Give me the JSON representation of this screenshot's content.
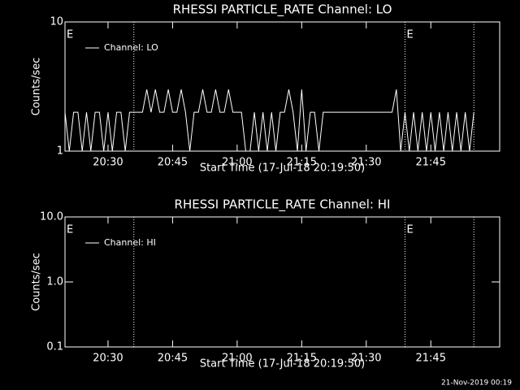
{
  "chart_data": [
    {
      "type": "line",
      "title": "RHESSI PARTICLE_RATE Channel: LO",
      "x_label": "Start Time (17-Jul-18 20:19:50)",
      "y_label": "Counts/sec",
      "log_y": true,
      "ylim": [
        1,
        10
      ],
      "yticks": [
        1,
        10
      ],
      "xlim": [
        "20:20",
        "22:01"
      ],
      "xticks": [
        "20:30",
        "20:45",
        "21:00",
        "21:15",
        "21:30",
        "21:45"
      ],
      "vlines": [
        "20:36",
        "21:39",
        "21:55"
      ],
      "annotations": [
        {
          "x": "20:20",
          "label": "E"
        },
        {
          "x": "21:39",
          "label": "E"
        }
      ],
      "legend": "upper left",
      "x": [
        "20:20",
        "20:21",
        "20:22",
        "20:23",
        "20:24",
        "20:25",
        "20:26",
        "20:27",
        "20:28",
        "20:29",
        "20:30",
        "20:31",
        "20:32",
        "20:33",
        "20:34",
        "20:35",
        "20:36",
        "20:37",
        "20:38",
        "20:39",
        "20:40",
        "20:41",
        "20:42",
        "20:43",
        "20:44",
        "20:45",
        "20:46",
        "20:47",
        "20:48",
        "20:49",
        "20:50",
        "20:51",
        "20:52",
        "20:53",
        "20:54",
        "20:55",
        "20:56",
        "20:57",
        "20:58",
        "20:59",
        "21:00",
        "21:01",
        "21:02",
        "21:03",
        "21:04",
        "21:05",
        "21:06",
        "21:07",
        "21:08",
        "21:09",
        "21:10",
        "21:11",
        "21:12",
        "21:13",
        "21:14",
        "21:15",
        "21:16",
        "21:17",
        "21:18",
        "21:19",
        "21:20",
        "21:21",
        "21:22",
        "21:23",
        "21:24",
        "21:25",
        "21:26",
        "21:27",
        "21:28",
        "21:29",
        "21:30",
        "21:31",
        "21:32",
        "21:33",
        "21:34",
        "21:35",
        "21:36",
        "21:37",
        "21:38",
        "21:39",
        "21:40",
        "21:41",
        "21:42",
        "21:43",
        "21:44",
        "21:45",
        "21:46",
        "21:47",
        "21:48",
        "21:49",
        "21:50",
        "21:51",
        "21:52",
        "21:53",
        "21:54",
        "21:55"
      ],
      "series": [
        {
          "name": "Channel: LO",
          "color": "#ffffff",
          "values": [
            2,
            1,
            2,
            2,
            1,
            2,
            1,
            2,
            2,
            1,
            2,
            1,
            2,
            2,
            1,
            2,
            2,
            2,
            2,
            3,
            2,
            3,
            2,
            2,
            3,
            2,
            2,
            3,
            2,
            1,
            2,
            2,
            3,
            2,
            2,
            3,
            2,
            2,
            3,
            2,
            2,
            2,
            1,
            1,
            2,
            1,
            2,
            1,
            2,
            1,
            2,
            2,
            3,
            2,
            1,
            3,
            1,
            2,
            2,
            1,
            2,
            2,
            2,
            2,
            2,
            2,
            2,
            2,
            2,
            2,
            2,
            2,
            2,
            2,
            2,
            2,
            2,
            3,
            1,
            2,
            1,
            2,
            1,
            2,
            1,
            2,
            1,
            2,
            1,
            2,
            1,
            2,
            1,
            2,
            1,
            2
          ]
        }
      ]
    },
    {
      "type": "line",
      "title": "RHESSI PARTICLE_RATE Channel: HI",
      "x_label": "Start Time (17-Jul-18 20:19:50)",
      "y_label": "Counts/sec",
      "log_y": true,
      "ylim": [
        0.1,
        10
      ],
      "yticks": [
        0.1,
        {
          "value": 1,
          "label": "1.0"
        },
        {
          "value": 10,
          "label": "10.0"
        }
      ],
      "xlim": [
        "20:20",
        "22:01"
      ],
      "xticks": [
        "20:30",
        "20:45",
        "21:00",
        "21:15",
        "21:30",
        "21:45"
      ],
      "vlines": [
        "20:36",
        "21:39",
        "21:55"
      ],
      "annotations": [
        {
          "x": "20:20",
          "label": "E"
        },
        {
          "x": "21:39",
          "label": "E"
        }
      ],
      "legend": "upper left",
      "x": [],
      "series": [
        {
          "name": "Channel: HI",
          "color": "#ffffff",
          "values": []
        }
      ]
    }
  ],
  "footer": "21-Nov-2019 00:19"
}
